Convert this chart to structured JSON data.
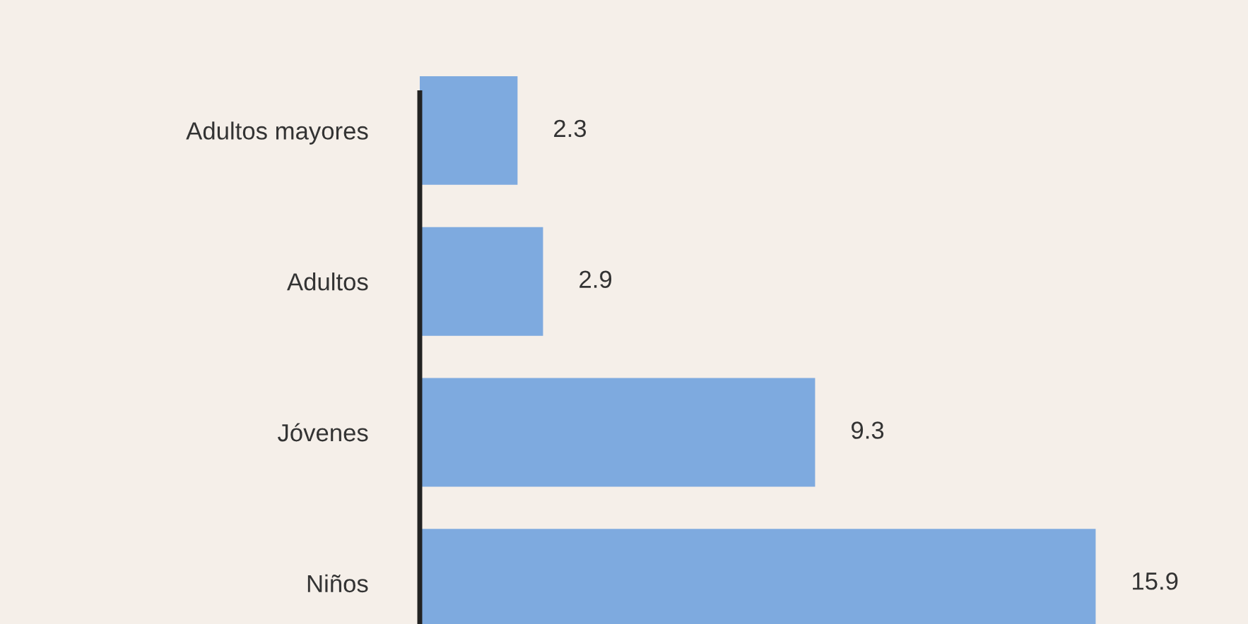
{
  "chart_data": {
    "type": "bar",
    "orientation": "horizontal",
    "categories": [
      "Adultos mayores",
      "Adultos",
      "Jóvenes",
      "Niños"
    ],
    "values": [
      2.3,
      2.9,
      9.3,
      15.9
    ],
    "color": "#7eaadf",
    "data_labels": true,
    "grid": false,
    "legend": false
  }
}
